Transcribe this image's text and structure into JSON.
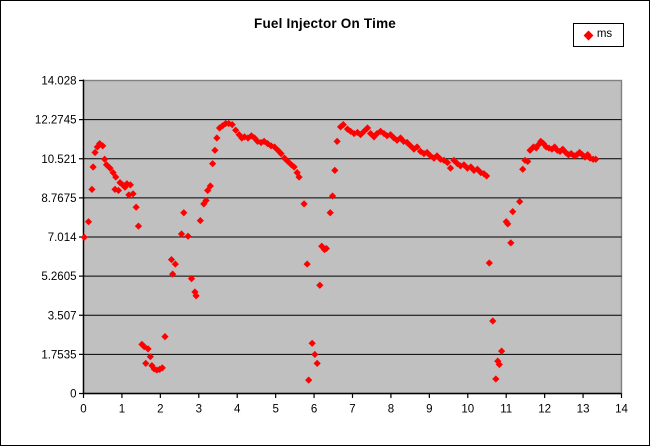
{
  "chart": {
    "title": "Fuel Injector On Time",
    "legend": {
      "label": "ms"
    },
    "colors": {
      "marker": "#FF0000",
      "plot_bg": "#C0C0C0",
      "plot_border": "#808080",
      "gridline": "#000000",
      "axis": "#000000",
      "chart_bg": "#FFFFFF",
      "chart_border": "#000000",
      "text": "#000000"
    }
  },
  "chart_data": {
    "type": "scatter",
    "title": "Fuel Injector On Time",
    "xlabel": "",
    "ylabel": "",
    "xlim": [
      0,
      14
    ],
    "ylim": [
      0,
      14.028
    ],
    "grid": "horizontal-major",
    "legend_position": "top-right",
    "x_tick_values": [
      0,
      1,
      2,
      3,
      4,
      5,
      6,
      7,
      8,
      9,
      10,
      11,
      12,
      13,
      14
    ],
    "x_tick_labels": [
      "0",
      "1",
      "2",
      "3",
      "4",
      "5",
      "6",
      "7",
      "8",
      "9",
      "10",
      "11",
      "12",
      "13",
      "14"
    ],
    "y_tick_values": [
      0,
      1.7535,
      3.507,
      5.2605,
      7.014,
      8.7675,
      10.521,
      12.2745,
      14.028
    ],
    "y_tick_labels": [
      "0",
      "1.7535",
      "3.507",
      "5.2605",
      "7.014",
      "8.7675",
      "10.521",
      "12.2745",
      "14.028"
    ],
    "series": [
      {
        "name": "ms",
        "marker": "diamond",
        "color": "#FF0000",
        "points": [
          [
            0.02,
            7.0
          ],
          [
            0.13,
            7.7
          ],
          [
            0.22,
            9.15
          ],
          [
            0.25,
            10.15
          ],
          [
            0.3,
            10.8
          ],
          [
            0.36,
            11.05
          ],
          [
            0.42,
            11.2
          ],
          [
            0.5,
            11.1
          ],
          [
            0.55,
            10.5
          ],
          [
            0.6,
            10.25
          ],
          [
            0.69,
            10.1
          ],
          [
            0.77,
            9.9
          ],
          [
            0.82,
            9.15
          ],
          [
            0.84,
            9.7
          ],
          [
            0.91,
            9.1
          ],
          [
            0.95,
            9.45
          ],
          [
            1.02,
            9.35
          ],
          [
            1.08,
            9.25
          ],
          [
            1.13,
            9.4
          ],
          [
            1.18,
            8.9
          ],
          [
            1.22,
            9.35
          ],
          [
            1.29,
            8.95
          ],
          [
            1.37,
            8.35
          ],
          [
            1.43,
            7.5
          ],
          [
            1.52,
            2.2
          ],
          [
            1.58,
            2.1
          ],
          [
            1.62,
            1.35
          ],
          [
            1.68,
            2.0
          ],
          [
            1.74,
            1.65
          ],
          [
            1.78,
            1.25
          ],
          [
            1.84,
            1.1
          ],
          [
            1.91,
            1.05
          ],
          [
            1.98,
            1.08
          ],
          [
            2.05,
            1.15
          ],
          [
            2.12,
            2.55
          ],
          [
            2.29,
            6.0
          ],
          [
            2.32,
            5.35
          ],
          [
            2.39,
            5.8
          ],
          [
            2.55,
            7.15
          ],
          [
            2.61,
            8.1
          ],
          [
            2.72,
            7.05
          ],
          [
            2.81,
            5.15
          ],
          [
            2.9,
            4.55
          ],
          [
            2.93,
            4.38
          ],
          [
            3.04,
            7.75
          ],
          [
            3.13,
            8.5
          ],
          [
            3.19,
            8.65
          ],
          [
            3.23,
            9.1
          ],
          [
            3.3,
            9.3
          ],
          [
            3.36,
            10.3
          ],
          [
            3.42,
            10.9
          ],
          [
            3.47,
            11.45
          ],
          [
            3.54,
            11.9
          ],
          [
            3.62,
            12.0
          ],
          [
            3.7,
            12.1
          ],
          [
            3.78,
            12.1
          ],
          [
            3.87,
            12.05
          ],
          [
            3.96,
            11.8
          ],
          [
            4.05,
            11.6
          ],
          [
            4.12,
            11.45
          ],
          [
            4.19,
            11.5
          ],
          [
            4.28,
            11.45
          ],
          [
            4.37,
            11.55
          ],
          [
            4.45,
            11.45
          ],
          [
            4.53,
            11.3
          ],
          [
            4.62,
            11.25
          ],
          [
            4.7,
            11.3
          ],
          [
            4.79,
            11.2
          ],
          [
            4.88,
            11.1
          ],
          [
            4.97,
            11.05
          ],
          [
            5.06,
            10.9
          ],
          [
            5.14,
            10.75
          ],
          [
            5.23,
            10.55
          ],
          [
            5.32,
            10.4
          ],
          [
            5.41,
            10.25
          ],
          [
            5.48,
            10.15
          ],
          [
            5.56,
            9.9
          ],
          [
            5.61,
            9.7
          ],
          [
            5.74,
            8.5
          ],
          [
            5.82,
            5.8
          ],
          [
            5.86,
            0.6
          ],
          [
            5.95,
            2.25
          ],
          [
            6.02,
            1.75
          ],
          [
            6.08,
            1.35
          ],
          [
            6.15,
            4.85
          ],
          [
            6.2,
            6.6
          ],
          [
            6.27,
            6.45
          ],
          [
            6.32,
            6.5
          ],
          [
            6.42,
            8.1
          ],
          [
            6.48,
            8.85
          ],
          [
            6.54,
            10.0
          ],
          [
            6.6,
            11.3
          ],
          [
            6.69,
            11.95
          ],
          [
            6.76,
            12.05
          ],
          [
            6.87,
            11.85
          ],
          [
            6.95,
            11.75
          ],
          [
            7.04,
            11.65
          ],
          [
            7.13,
            11.7
          ],
          [
            7.21,
            11.6
          ],
          [
            7.3,
            11.75
          ],
          [
            7.39,
            11.9
          ],
          [
            7.47,
            11.65
          ],
          [
            7.56,
            11.5
          ],
          [
            7.64,
            11.65
          ],
          [
            7.73,
            11.75
          ],
          [
            7.82,
            11.65
          ],
          [
            7.9,
            11.55
          ],
          [
            7.99,
            11.6
          ],
          [
            8.08,
            11.45
          ],
          [
            8.16,
            11.35
          ],
          [
            8.25,
            11.45
          ],
          [
            8.33,
            11.3
          ],
          [
            8.42,
            11.25
          ],
          [
            8.51,
            11.1
          ],
          [
            8.6,
            10.95
          ],
          [
            8.68,
            11.05
          ],
          [
            8.77,
            10.85
          ],
          [
            8.86,
            10.75
          ],
          [
            8.94,
            10.8
          ],
          [
            9.03,
            10.65
          ],
          [
            9.12,
            10.55
          ],
          [
            9.2,
            10.65
          ],
          [
            9.29,
            10.5
          ],
          [
            9.38,
            10.45
          ],
          [
            9.47,
            10.35
          ],
          [
            9.55,
            10.1
          ],
          [
            9.64,
            10.45
          ],
          [
            9.73,
            10.3
          ],
          [
            9.81,
            10.2
          ],
          [
            9.9,
            10.25
          ],
          [
            9.99,
            10.1
          ],
          [
            10.08,
            10.15
          ],
          [
            10.16,
            10.0
          ],
          [
            10.25,
            10.05
          ],
          [
            10.34,
            9.9
          ],
          [
            10.42,
            9.85
          ],
          [
            10.49,
            9.75
          ],
          [
            10.56,
            5.85
          ],
          [
            10.65,
            3.25
          ],
          [
            10.73,
            0.65
          ],
          [
            10.78,
            1.45
          ],
          [
            10.82,
            1.3
          ],
          [
            10.88,
            1.9
          ],
          [
            11.0,
            7.7
          ],
          [
            11.04,
            7.6
          ],
          [
            11.12,
            6.75
          ],
          [
            11.17,
            8.15
          ],
          [
            11.35,
            8.6
          ],
          [
            11.43,
            10.05
          ],
          [
            11.49,
            10.45
          ],
          [
            11.56,
            10.4
          ],
          [
            11.62,
            10.9
          ],
          [
            11.71,
            11.05
          ],
          [
            11.78,
            11.0
          ],
          [
            11.84,
            11.15
          ],
          [
            11.9,
            11.3
          ],
          [
            11.97,
            11.2
          ],
          [
            12.04,
            11.05
          ],
          [
            12.11,
            11.0
          ],
          [
            12.19,
            10.95
          ],
          [
            12.26,
            11.05
          ],
          [
            12.33,
            10.9
          ],
          [
            12.4,
            10.85
          ],
          [
            12.47,
            10.95
          ],
          [
            12.55,
            10.8
          ],
          [
            12.62,
            10.7
          ],
          [
            12.69,
            10.75
          ],
          [
            12.77,
            10.65
          ],
          [
            12.84,
            10.7
          ],
          [
            12.91,
            10.8
          ],
          [
            12.98,
            10.7
          ],
          [
            13.05,
            10.6
          ],
          [
            13.12,
            10.7
          ],
          [
            13.18,
            10.55
          ],
          [
            13.26,
            10.5
          ],
          [
            13.33,
            10.5
          ]
        ]
      }
    ]
  }
}
